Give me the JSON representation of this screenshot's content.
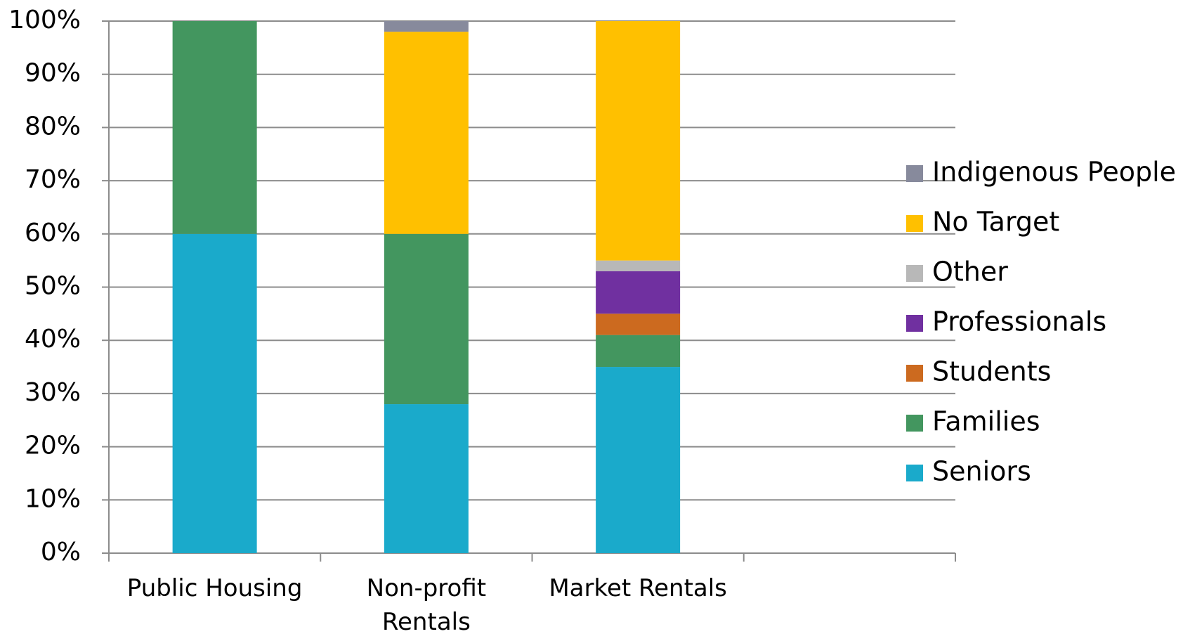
{
  "chart_data": {
    "type": "stacked_bar",
    "categories": [
      "Public Housing",
      "Non-profit Rentals",
      "Market Rentals",
      null
    ],
    "series": [
      {
        "name": "Seniors",
        "color": "#1aaacb",
        "values": [
          60,
          28,
          35,
          null
        ]
      },
      {
        "name": "Families",
        "color": "#43965f",
        "values": [
          40,
          32,
          6,
          null
        ]
      },
      {
        "name": "Students",
        "color": "#cc6a1f",
        "values": [
          0,
          0,
          4,
          null
        ]
      },
      {
        "name": "Professionals",
        "color": "#7030a0",
        "values": [
          0,
          0,
          8,
          null
        ]
      },
      {
        "name": "Other",
        "color": "#b8b8b8",
        "values": [
          0,
          0,
          2,
          null
        ]
      },
      {
        "name": "No Target",
        "color": "#ffc000",
        "values": [
          0,
          38,
          45,
          null
        ]
      },
      {
        "name": "Indigenous People",
        "color": "#878a9c",
        "values": [
          0,
          2,
          0,
          null
        ]
      }
    ],
    "ylim": [
      0,
      100
    ],
    "yticks": [
      {
        "value": 0,
        "label": "0%"
      },
      {
        "value": 10,
        "label": "10%"
      },
      {
        "value": 20,
        "label": "20%"
      },
      {
        "value": 30,
        "label": "30%"
      },
      {
        "value": 40,
        "label": "40%"
      },
      {
        "value": 50,
        "label": "50%"
      },
      {
        "value": 60,
        "label": "60%"
      },
      {
        "value": 70,
        "label": "70%"
      },
      {
        "value": 80,
        "label": "80%"
      },
      {
        "value": 90,
        "label": "90%"
      },
      {
        "value": 100,
        "label": "100%"
      }
    ],
    "grid": true,
    "legend": "right"
  }
}
